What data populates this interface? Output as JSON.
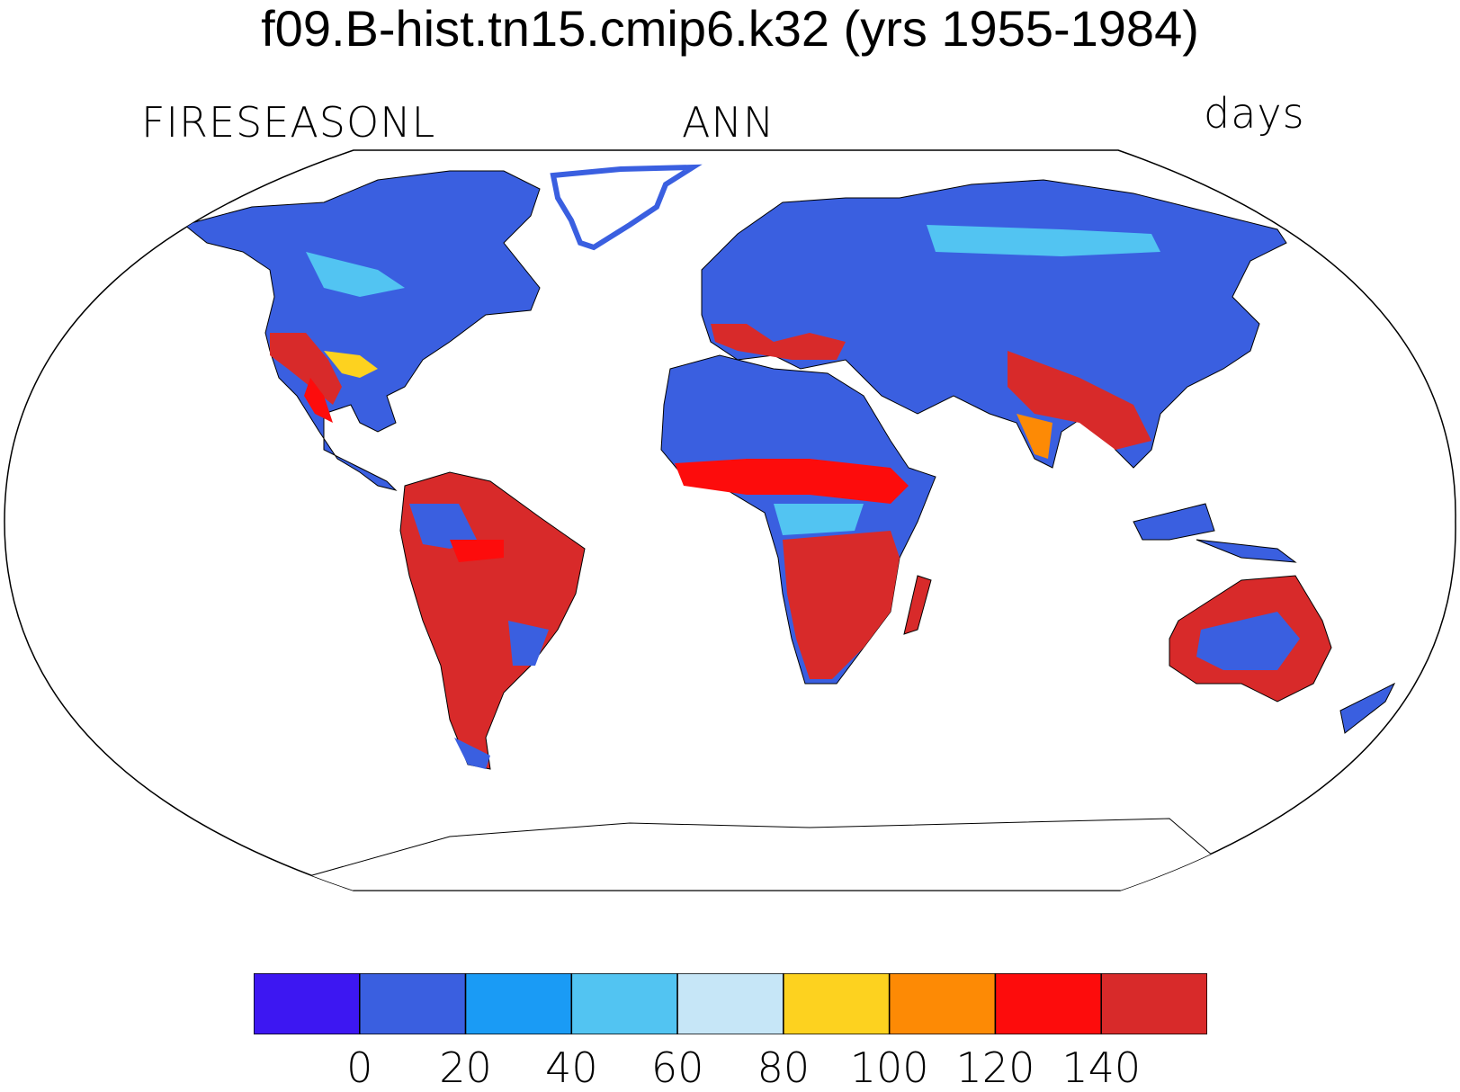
{
  "title": "f09.B-hist.tn15.cmip6.k32 (yrs 1955-1984)",
  "left_label": "FIRESEASONL",
  "center_label": "ANN",
  "right_label": "days",
  "colorbar": {
    "colors": [
      "#3d17f2",
      "#3a5fe0",
      "#1a9bf5",
      "#52c4f2",
      "#c6e6f7",
      "#fdd21f",
      "#fd8a05",
      "#fd0c0c",
      "#d82a2a"
    ],
    "labels": [
      "0",
      "20",
      "40",
      "60",
      "80",
      "100",
      "120",
      "140"
    ]
  },
  "chart_data": {
    "type": "heatmap",
    "projection": "Robinson",
    "variable": "FIRESEASONL",
    "season": "ANN",
    "units": "days",
    "levels": [
      0,
      20,
      40,
      60,
      80,
      100,
      120,
      140
    ],
    "colors": [
      "#3d17f2",
      "#3a5fe0",
      "#1a9bf5",
      "#52c4f2",
      "#c6e6f7",
      "#fdd21f",
      "#fd8a05",
      "#fd0c0c",
      "#d82a2a"
    ]
  }
}
